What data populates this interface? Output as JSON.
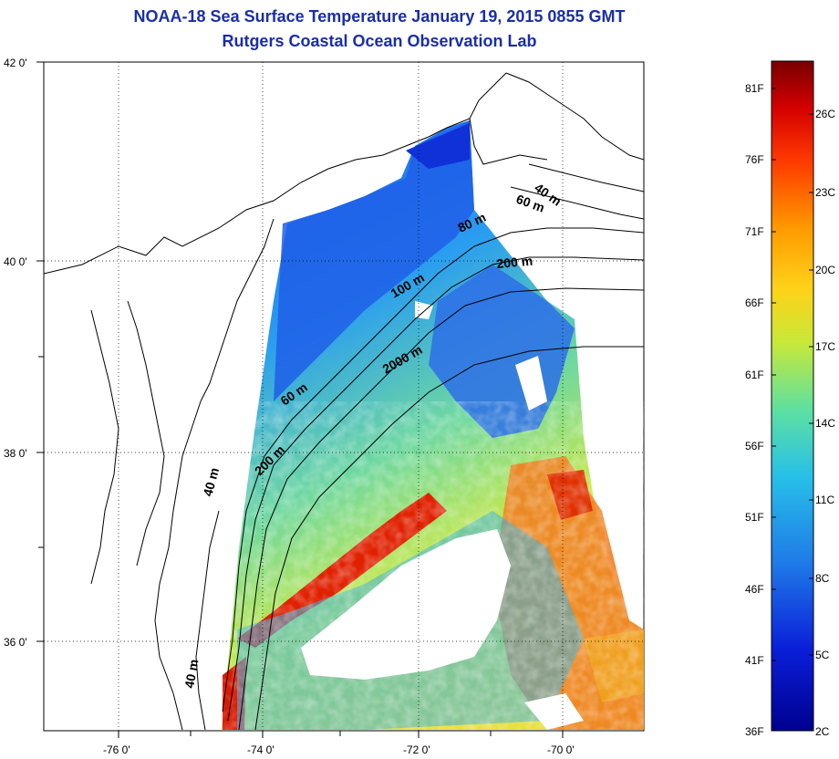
{
  "title": "NOAA-18 Sea Surface Temperature January 19, 2015 0855 GMT",
  "subtitle": "Rutgers Coastal Ocean Observation Lab",
  "map": {
    "lat_labels": [
      "42 0'",
      "40 0'",
      "38 0'",
      "36 0'"
    ],
    "lon_labels": [
      "-76 0'",
      "-74 0'",
      "-72 0'",
      "-70 0'"
    ],
    "depth_labels": [
      "40 m",
      "60 m",
      "80 m",
      "200 m",
      "100 m",
      "2000 m",
      "60 m",
      "200 m",
      "40 m",
      "40 m"
    ]
  },
  "colorbar": {
    "fahrenheit": [
      "81F",
      "76F",
      "71F",
      "66F",
      "61F",
      "56F",
      "51F",
      "46F",
      "41F",
      "36F"
    ],
    "celsius": [
      "26C",
      "23C",
      "20C",
      "17C",
      "14C",
      "11C",
      "8C",
      "5C",
      "2C"
    ],
    "colors": [
      "#7a0000",
      "#d40000",
      "#ff4a00",
      "#ffa000",
      "#f0e020",
      "#9ee060",
      "#30d8c8",
      "#2090e8",
      "#1030d0",
      "#000090"
    ]
  }
}
